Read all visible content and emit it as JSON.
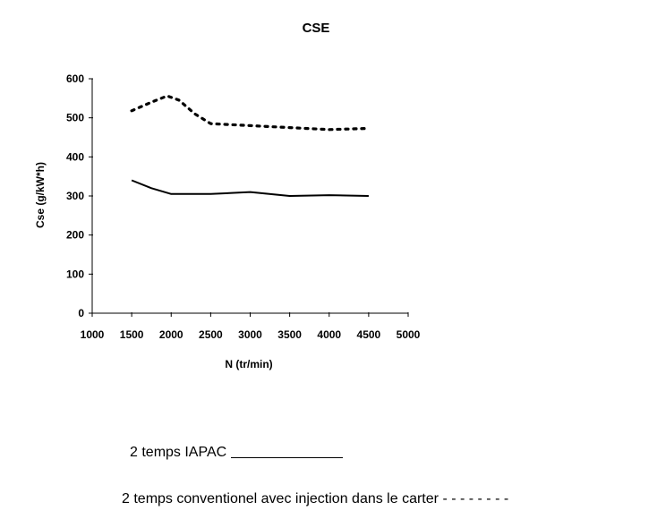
{
  "chart_data": {
    "type": "line",
    "title": "CSE",
    "xlabel": "N (tr/min)",
    "ylabel": "Cse (g/kW*h)",
    "xlim": [
      1000,
      5000
    ],
    "ylim": [
      0,
      600
    ],
    "xticks": [
      1000,
      1500,
      2000,
      2500,
      3000,
      3500,
      4000,
      4500,
      5000
    ],
    "yticks": [
      0,
      100,
      200,
      300,
      400,
      500,
      600
    ],
    "grid": false,
    "legend": "below",
    "series": [
      {
        "name": "2 temps IAPAC",
        "style": "solid",
        "x": [
          1500,
          1750,
          2000,
          2500,
          3000,
          3500,
          4000,
          4500
        ],
        "y": [
          340,
          320,
          305,
          305,
          310,
          300,
          302,
          300
        ]
      },
      {
        "name": "2 temps conventionel avec injection dans le carter",
        "style": "dotted",
        "x": [
          1500,
          1750,
          1950,
          2100,
          2300,
          2500,
          3000,
          3500,
          4000,
          4500
        ],
        "y": [
          518,
          540,
          556,
          545,
          510,
          485,
          480,
          475,
          470,
          473
        ]
      }
    ]
  },
  "legend": {
    "item1_label": "2 temps IAPAC",
    "item2_label": "2 temps conventionel avec injection dans le carter",
    "item2_marker": "- - - - - - - -"
  },
  "colors": {
    "line": "#000000",
    "background": "#ffffff"
  }
}
